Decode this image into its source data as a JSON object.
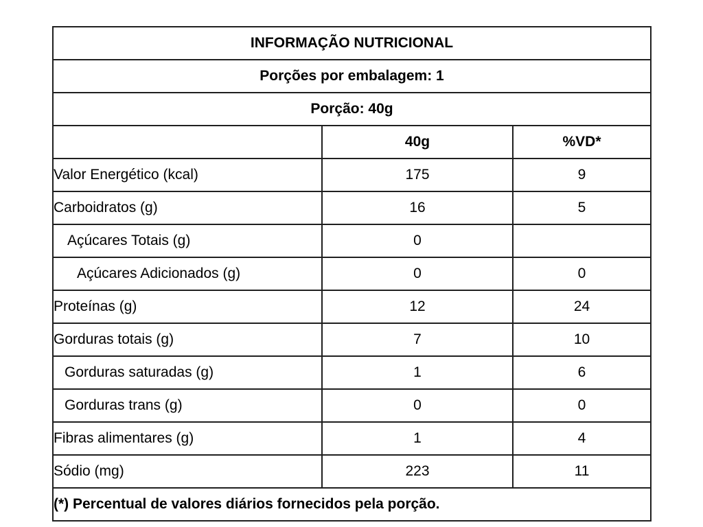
{
  "page": {
    "background_color": "#ffffff",
    "border_color": "#1f1f1f",
    "text_color": "#000000"
  },
  "table": {
    "title": "INFORMAÇÃO NUTRICIONAL",
    "servings_line": "Porções por embalagem: 1",
    "portion_line": "Porção: 40g",
    "columns": {
      "nutrient": "",
      "amount": "40g",
      "dv": "%VD*"
    },
    "rows": [
      {
        "label": "Valor Energético (kcal)",
        "amount": "175",
        "dv": "9",
        "indent": 0
      },
      {
        "label": "Carboidratos (g)",
        "amount": "16",
        "dv": "5",
        "indent": 0
      },
      {
        "label": "Açúcares Totais (g)",
        "amount": "0",
        "dv": "",
        "indent": 1
      },
      {
        "label": "Açúcares Adicionados (g)",
        "amount": "0",
        "dv": "0",
        "indent": 2
      },
      {
        "label": "Proteínas (g)",
        "amount": "12",
        "dv": "24",
        "indent": 0
      },
      {
        "label": "Gorduras totais (g)",
        "amount": "7",
        "dv": "10",
        "indent": 0
      },
      {
        "label": "Gorduras saturadas (g)",
        "amount": "1",
        "dv": "6",
        "indent": 1
      },
      {
        "label": "Gorduras trans (g)",
        "amount": "0",
        "dv": "0",
        "indent": 1
      },
      {
        "label": "Fibras alimentares (g)",
        "amount": "1",
        "dv": "4",
        "indent": 0
      },
      {
        "label": "Sódio (mg)",
        "amount": "223",
        "dv": "11",
        "indent": 0
      }
    ],
    "footnote": "(*) Percentual de valores diários fornecidos pela porção."
  }
}
